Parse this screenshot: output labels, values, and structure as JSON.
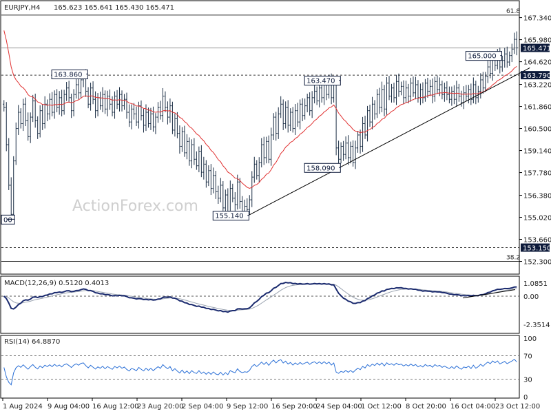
{
  "chart_data": [
    {
      "type": "candlestick-bars",
      "title": "EURJPY,H4",
      "ohlc_readout": "165.623 165.641 165.430 165.471",
      "watermark": "ActionForex.com",
      "y_ticks": [
        "167.340",
        "165.980",
        "164.620",
        "163.220",
        "161.860",
        "160.500",
        "159.140",
        "157.780",
        "156.380",
        "155.020",
        "153.660",
        "152.300"
      ],
      "y_tick_values": [
        167.34,
        165.98,
        164.62,
        163.22,
        161.86,
        160.5,
        159.14,
        157.78,
        156.38,
        155.02,
        153.66,
        152.3
      ],
      "ylim": [
        151.6,
        168.3
      ],
      "x_ticks": [
        "1 Aug 2024",
        "9 Aug 04:00",
        "16 Aug 12:00",
        "23 Aug 20:00",
        "2 Sep 04:00",
        "9 Sep 12:00",
        "16 Sep 20:00",
        "24 Sep 04:00",
        "1 Oct 12:00",
        "8 Oct 20:00",
        "16 Oct 04:00",
        "23 Oct 12:00"
      ],
      "current_price": {
        "label": "165.471",
        "value": 165.471
      },
      "levels": [
        {
          "label": "163.790",
          "value": 163.79,
          "style": "dashed"
        },
        {
          "label": "153.150",
          "value": 153.15,
          "style": "dashed"
        },
        {
          "label": "61.8",
          "value": 167.5,
          "style": "solid-fib"
        },
        {
          "label": "38.2",
          "value": 152.3,
          "style": "solid-fib"
        }
      ],
      "annotations": [
        {
          "label": "163.860",
          "value": 163.86,
          "index": 33
        },
        {
          "label": "163.470",
          "value": 163.47,
          "index": 138
        },
        {
          "label": "158.090",
          "value": 158.09,
          "index": 138
        },
        {
          "label": "155.140",
          "value": 155.14,
          "index": 100
        },
        {
          "label": "165.000",
          "value": 165.0,
          "index": 205
        },
        {
          "label": "00",
          "value": 154.9,
          "index": 0
        }
      ],
      "trendline": {
        "from": {
          "index": 101,
          "value": 155.1
        },
        "to": {
          "index": 215,
          "value": 164.2
        }
      },
      "ma_color": "#e03030",
      "bar_color": "#1a2d44",
      "series_close": [
        161.8,
        159.5,
        157.0,
        155.2,
        158.5,
        160.5,
        161.5,
        160.8,
        162.0,
        161.0,
        160.0,
        161.2,
        162.2,
        161.0,
        160.2,
        161.6,
        160.8,
        162.0,
        161.4,
        162.3,
        161.5,
        162.6,
        161.8,
        162.4,
        161.6,
        162.6,
        163.0,
        162.4,
        161.6,
        162.6,
        163.2,
        162.7,
        163.5,
        163.7,
        162.8,
        162.0,
        163.0,
        162.3,
        161.6,
        162.4,
        161.9,
        162.6,
        161.7,
        162.5,
        162.0,
        161.5,
        162.5,
        162.0,
        162.6,
        161.9,
        162.3,
        161.5,
        160.9,
        161.7,
        161.4,
        160.9,
        161.9,
        161.3,
        160.7,
        161.5,
        160.8,
        161.4,
        160.6,
        161.2,
        161.8,
        161.3,
        162.5,
        161.8,
        161.2,
        161.9,
        160.4,
        161.1,
        160.2,
        159.4,
        160.3,
        159.0,
        159.7,
        158.5,
        159.5,
        158.6,
        158.2,
        159.1,
        157.8,
        158.3,
        157.2,
        157.9,
        156.8,
        157.6,
        156.6,
        156.2,
        157.0,
        155.6,
        156.4,
        155.4,
        156.8,
        156.2,
        155.8,
        157.2,
        156.0,
        155.4,
        155.7,
        155.5,
        156.1,
        157.5,
        158.3,
        157.6,
        158.4,
        159.5,
        158.7,
        159.7,
        158.6,
        160.1,
        161.2,
        160.2,
        161.4,
        162.0,
        160.8,
        161.8,
        160.7,
        161.5,
        160.5,
        161.6,
        160.9,
        162.0,
        161.3,
        161.9,
        162.4,
        161.6,
        162.4,
        162.8,
        162.2,
        163.0,
        162.4,
        163.3,
        162.6,
        163.4,
        162.4,
        163.3,
        159.3,
        158.6,
        159.4,
        158.9,
        159.6,
        158.7,
        159.4,
        158.4,
        159.3,
        160.1,
        159.4,
        160.8,
        160.1,
        161.6,
        160.9,
        162.0,
        161.4,
        162.6,
        161.8,
        162.9,
        161.7,
        163.3,
        162.5,
        163.0,
        162.4,
        163.4,
        162.8,
        163.1,
        162.4,
        163.0,
        162.5,
        163.3,
        162.7,
        163.2,
        162.4,
        162.9,
        162.4,
        163.3,
        162.8,
        163.1,
        162.5,
        163.4,
        162.9,
        163.2,
        162.6,
        163.0,
        162.6,
        162.3,
        162.8,
        162.3,
        163.0,
        162.5,
        162.1,
        162.7,
        162.5,
        162.9,
        162.3,
        163.2,
        162.4,
        162.8,
        163.5,
        163.0,
        163.7,
        164.3,
        163.9,
        164.8,
        164.4,
        165.0,
        164.3,
        164.7,
        165.1,
        164.6,
        165.0,
        165.4,
        166.0,
        165.471
      ],
      "macd": {
        "title": "MACD(12,26,9) 0.5120 0.4013",
        "y_ticks": [
          "1.0851",
          "0.00",
          "-2.3514"
        ],
        "y_tick_values": [
          1.0851,
          0.0,
          -2.3514
        ],
        "ylim": [
          -3.0,
          1.5
        ]
      },
      "rsi": {
        "title": "RSI(14) 64.8870",
        "y_ticks": [
          "100",
          "70",
          "30",
          "0"
        ],
        "y_tick_values": [
          100,
          70,
          30,
          0
        ],
        "ylim": [
          0,
          100
        ]
      }
    }
  ]
}
